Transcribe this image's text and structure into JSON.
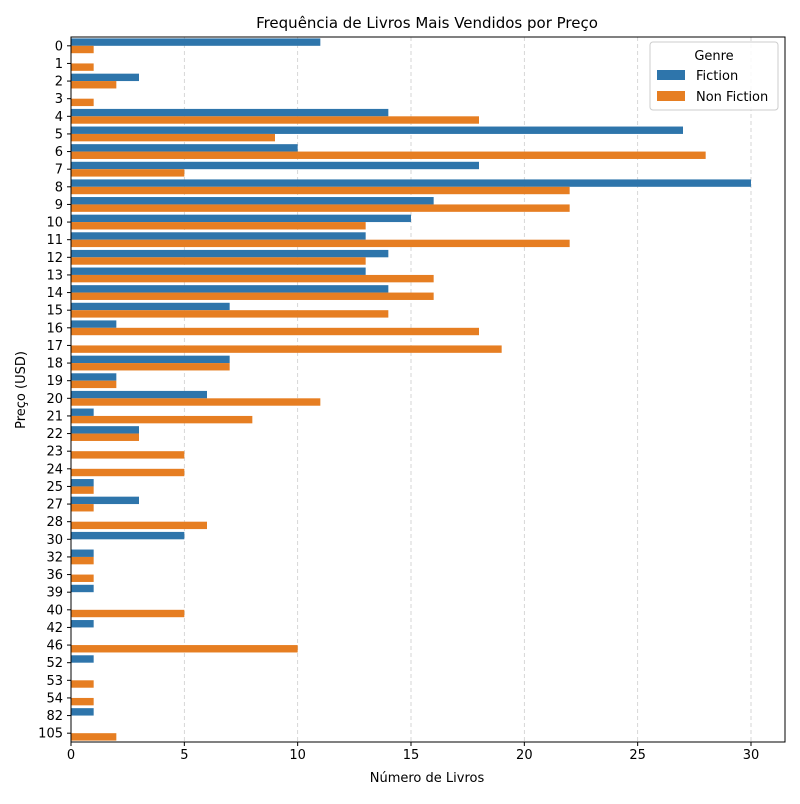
{
  "colors": {
    "fiction": "#2e75ab",
    "nonfiction": "#e67e22",
    "grid": "#cccccc",
    "axis": "#000000"
  },
  "chart_data": {
    "type": "bar",
    "orientation": "horizontal",
    "title": "Frequência de Livros Mais Vendidos por Preço",
    "xlabel": "Número de Livros",
    "ylabel": "Preço (USD)",
    "xlim": [
      0,
      31.5
    ],
    "xticks": [
      0,
      5,
      10,
      15,
      20,
      25,
      30
    ],
    "grid": "x, dashed",
    "legend": {
      "title": "Genre",
      "position": "top-right"
    },
    "categories": [
      "0",
      "1",
      "2",
      "3",
      "4",
      "5",
      "6",
      "7",
      "8",
      "9",
      "10",
      "11",
      "12",
      "13",
      "14",
      "15",
      "16",
      "17",
      "18",
      "19",
      "20",
      "21",
      "22",
      "23",
      "24",
      "25",
      "27",
      "28",
      "30",
      "32",
      "36",
      "39",
      "40",
      "42",
      "46",
      "52",
      "53",
      "54",
      "82",
      "105"
    ],
    "series": [
      {
        "name": "Fiction",
        "values": [
          11,
          0,
          3,
          0,
          14,
          27,
          10,
          18,
          30,
          16,
          15,
          13,
          14,
          13,
          14,
          7,
          2,
          0,
          7,
          2,
          6,
          1,
          3,
          0,
          0,
          1,
          3,
          0,
          5,
          1,
          0,
          1,
          0,
          1,
          0,
          1,
          0,
          0,
          1,
          0
        ]
      },
      {
        "name": "Non Fiction",
        "values": [
          1,
          1,
          2,
          1,
          18,
          9,
          28,
          5,
          22,
          22,
          13,
          22,
          13,
          16,
          16,
          14,
          18,
          19,
          7,
          2,
          11,
          8,
          3,
          5,
          5,
          1,
          1,
          6,
          0,
          1,
          1,
          0,
          5,
          0,
          10,
          0,
          1,
          1,
          0,
          2
        ]
      }
    ]
  }
}
